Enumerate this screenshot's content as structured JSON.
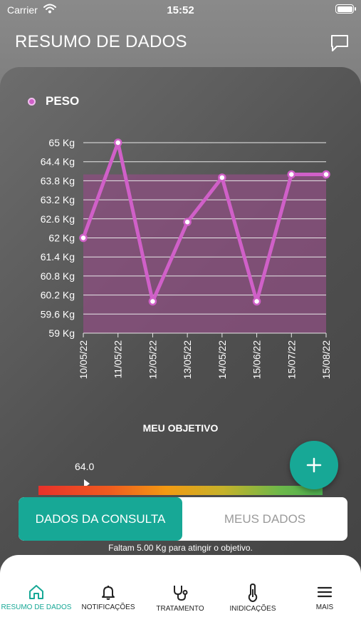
{
  "status_bar": {
    "carrier": "Carrier",
    "time": "15:52"
  },
  "header": {
    "title": "RESUMO DE DADOS",
    "chat_icon": "chat-bubble-icon"
  },
  "chart_data": {
    "type": "line",
    "series": [
      {
        "name": "PESO",
        "color": "#d060c8",
        "x": [
          "10/05/22",
          "11/05/22",
          "12/05/22",
          "13/05/22",
          "14/05/22",
          "15/06/22",
          "15/07/22",
          "15/08/22"
        ],
        "values": [
          62.0,
          65.0,
          60.0,
          62.5,
          63.9,
          60.0,
          64.0,
          64.0
        ]
      }
    ],
    "target_band": {
      "from": 59.0,
      "to": 64.0
    },
    "y_ticks": [
      "59 Kg",
      "59.6 Kg",
      "60.2 Kg",
      "60.8 Kg",
      "61.4 Kg",
      "62 Kg",
      "62.6 Kg",
      "63.2 Kg",
      "63.8 Kg",
      "64.4 Kg",
      "65 Kg"
    ],
    "ylim": [
      59,
      65
    ],
    "grid": true,
    "legend": "top-left"
  },
  "goal": {
    "label": "MEU OBJETIVO",
    "value": "64.0",
    "remaining_text": "Faltam 5.00 Kg para atingir o objetivo."
  },
  "segment": {
    "active": "DADOS DA CONSULTA",
    "inactive": "MEUS DADOS"
  },
  "fab": {
    "icon": "plus-icon"
  },
  "tabs": [
    {
      "label": "RESUMO DE DADOS",
      "icon": "home-icon",
      "active": true
    },
    {
      "label": "NOTIFICAÇÕES",
      "icon": "bell-icon",
      "active": false
    },
    {
      "label": "TRATAMENTO",
      "icon": "stethoscope-icon",
      "active": false
    },
    {
      "label": "INIDICAÇÕES",
      "icon": "thermometer-icon",
      "active": false
    },
    {
      "label": "MAIS",
      "icon": "menu-icon",
      "active": false
    }
  ],
  "colors": {
    "accent": "#17a896",
    "series": "#d060c8",
    "band": "#8a4f7e"
  }
}
